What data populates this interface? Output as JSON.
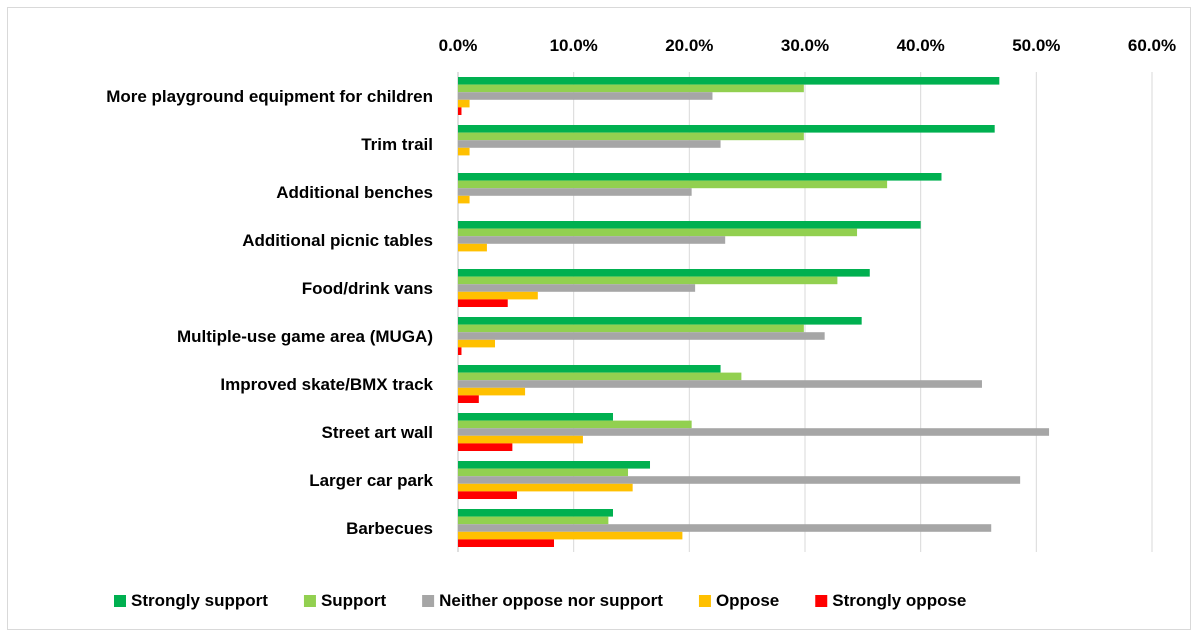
{
  "chart_data": {
    "type": "bar",
    "orientation": "horizontal",
    "title": "",
    "xlabel": "",
    "ylabel": "",
    "xlim": [
      0,
      60
    ],
    "x_ticks": [
      "0.0%",
      "10.0%",
      "20.0%",
      "30.0%",
      "40.0%",
      "50.0%",
      "60.0%"
    ],
    "x_axis_position": "top",
    "grid": true,
    "legend_position": "bottom",
    "categories": [
      "More playground equipment for children",
      "Trim trail",
      "Additional benches",
      "Additional picnic tables",
      "Food/drink vans",
      "Multiple-use game area (MUGA)",
      "Improved skate/BMX track",
      "Street art wall",
      "Larger car park",
      "Barbecues"
    ],
    "series": [
      {
        "name": "Strongly support",
        "color": "#00b050",
        "values": [
          46.8,
          46.4,
          41.8,
          40.0,
          35.6,
          34.9,
          22.7,
          13.4,
          16.6,
          13.4
        ]
      },
      {
        "name": "Support",
        "color": "#92d050",
        "values": [
          29.9,
          29.9,
          37.1,
          34.5,
          32.8,
          29.9,
          24.5,
          20.2,
          14.7,
          13.0
        ]
      },
      {
        "name": "Neither oppose nor support",
        "color": "#a6a6a6",
        "values": [
          22.0,
          22.7,
          20.2,
          23.1,
          20.5,
          31.7,
          45.3,
          51.1,
          48.6,
          46.1
        ]
      },
      {
        "name": "Oppose",
        "color": "#ffc000",
        "values": [
          1.0,
          1.0,
          1.0,
          2.5,
          6.9,
          3.2,
          5.8,
          10.8,
          15.1,
          19.4
        ]
      },
      {
        "name": "Strongly oppose",
        "color": "#ff0000",
        "values": [
          0.3,
          0.0,
          0.0,
          0.0,
          4.3,
          0.3,
          1.8,
          4.7,
          5.1,
          8.3
        ]
      }
    ]
  }
}
